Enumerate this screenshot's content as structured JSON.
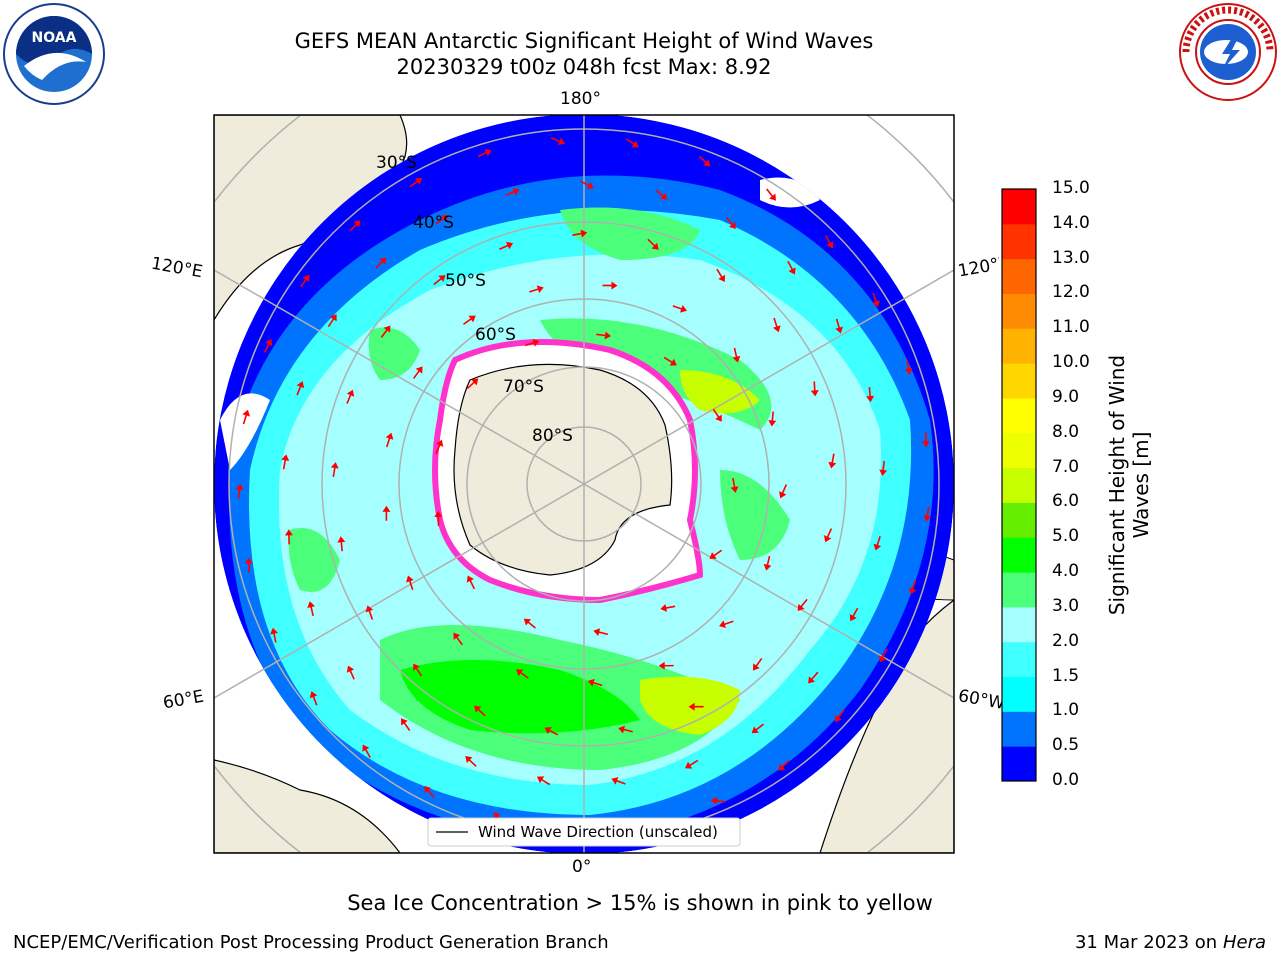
{
  "title": {
    "line1": "GEFS MEAN Antarctic Significant Height of Wind Waves",
    "line2": "20230329 t00z 048h fcst   Max: 8.92"
  },
  "map": {
    "projection": "south-polar-stereographic",
    "longitude_labels": {
      "top": "180°",
      "bottom": "0°",
      "left_upper": "120°E",
      "left_lower": "60°E",
      "right_upper": "120°W",
      "right_lower": "60°W"
    },
    "latitude_labels": [
      "30°S",
      "40°S",
      "50°S",
      "60°S",
      "70°S",
      "80°S"
    ],
    "legend_label": "Wind Wave Direction (unscaled)",
    "colors": {
      "land": "#efecdc",
      "arrow": "#ff0000",
      "ice_edge": "#ff33cc",
      "grid": "#b0b0b0"
    }
  },
  "colorbar": {
    "title_line1": "Significant Height of Wind",
    "title_line2": "Waves [m]",
    "ticks": [
      "0.0",
      "0.5",
      "1.0",
      "1.5",
      "2.0",
      "3.0",
      "4.0",
      "5.0",
      "6.0",
      "7.0",
      "8.0",
      "9.0",
      "10.0",
      "11.0",
      "12.0",
      "13.0",
      "14.0",
      "15.0"
    ],
    "colors": [
      "#0000ff",
      "#0073ff",
      "#00ffff",
      "#40ffff",
      "#a6ffff",
      "#4cff7a",
      "#00ff00",
      "#66ee00",
      "#c8ff00",
      "#eeff00",
      "#ffff00",
      "#ffd700",
      "#ffb300",
      "#ff8c00",
      "#ff6600",
      "#ff3300",
      "#ff0000"
    ]
  },
  "logos": {
    "left": "NOAA",
    "right": "NATIONAL WEATHER SERVICE"
  },
  "ice_note": "Sea Ice Concentration > 15% is shown in pink to yellow",
  "footer": {
    "left": "NCEP/EMC/Verification Post Processing Product Generation Branch",
    "right_date": "31 Mar 2023 on",
    "right_host": "Hera"
  }
}
